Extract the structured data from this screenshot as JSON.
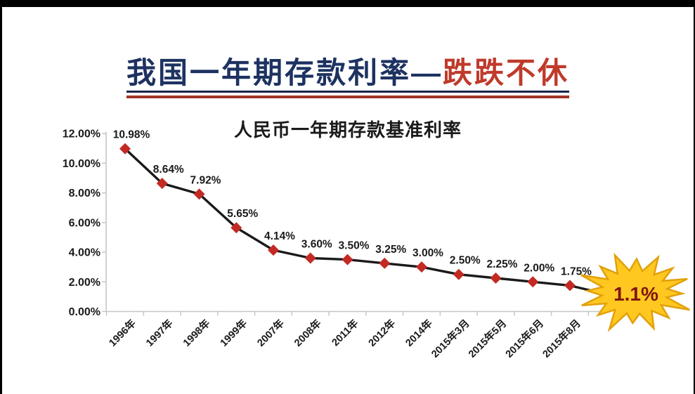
{
  "page": {
    "main_title": {
      "prefix": "我国一年期存款利率—",
      "highlight": "跌跌不休",
      "prefix_color": "#1d3261",
      "highlight_color": "#bf3a2b",
      "underline_top_color": "#17234c",
      "underline_bottom_color": "#a23327"
    }
  },
  "chart_data": {
    "type": "line",
    "title": "人民币一年期存款基准利率",
    "categories": [
      "1996年",
      "1997年",
      "1998年",
      "1999年",
      "2007年",
      "2008年",
      "2011年",
      "2012年",
      "2014年",
      "2015年3月",
      "2015年5月",
      "2015年6月",
      "2015年8月"
    ],
    "values": [
      10.98,
      8.64,
      7.92,
      5.65,
      4.14,
      3.6,
      3.5,
      3.25,
      3.0,
      2.5,
      2.25,
      2.0,
      1.75
    ],
    "point_labels": [
      "10.98%",
      "8.64%",
      "7.92%",
      "5.65%",
      "4.14%",
      "3.60%",
      "3.50%",
      "3.25%",
      "3.00%",
      "2.50%",
      "2.25%",
      "2.00%",
      "1.75%"
    ],
    "xlabel": "",
    "ylabel": "",
    "ylim": [
      0,
      12
    ],
    "y_tick_step": 2,
    "y_tick_labels": [
      "12.00%",
      "10.00%",
      "8.00%",
      "6.00%",
      "4.00%",
      "2.00%",
      "0.00%"
    ],
    "grid": false,
    "legend": null,
    "line_color": "#1a1a1a",
    "marker": {
      "shape": "diamond",
      "color": "#c32a24"
    },
    "label_color": "#1a1a1a",
    "axis_color": "#c6c6c6",
    "callout": {
      "label": "1.1%",
      "value": 1.1,
      "shape": "starburst",
      "fill": "#ffc820",
      "stroke": "#e2a00a",
      "text_color": "#7e150f"
    }
  }
}
